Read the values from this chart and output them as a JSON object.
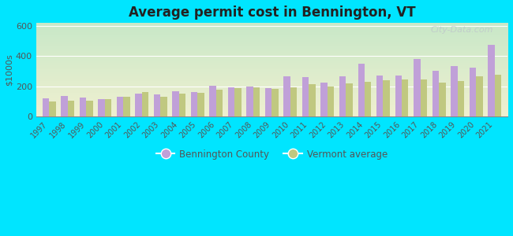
{
  "title": "Average permit cost in Bennington, VT",
  "ylabel": "$1000s",
  "background_outer": "#00e5ff",
  "bar_color_bennington": "#c0a0d8",
  "bar_color_vermont": "#c0c880",
  "years": [
    1997,
    1998,
    1999,
    2000,
    2001,
    2002,
    2003,
    2004,
    2005,
    2006,
    2007,
    2008,
    2009,
    2010,
    2011,
    2012,
    2013,
    2014,
    2015,
    2016,
    2017,
    2018,
    2019,
    2020,
    2021
  ],
  "bennington": [
    120,
    135,
    125,
    115,
    130,
    150,
    145,
    165,
    160,
    205,
    195,
    200,
    190,
    265,
    260,
    225,
    265,
    350,
    270,
    270,
    380,
    305,
    335,
    325,
    475
  ],
  "vermont": [
    100,
    105,
    105,
    115,
    130,
    160,
    130,
    150,
    155,
    175,
    190,
    195,
    185,
    195,
    215,
    200,
    220,
    230,
    240,
    245,
    245,
    225,
    235,
    265,
    275
  ],
  "ylim": [
    0,
    620
  ],
  "yticks": [
    0,
    200,
    400,
    600
  ],
  "legend_labels": [
    "Bennington County",
    "Vermont average"
  ],
  "watermark": "City-Data.com",
  "bg_topleft": "#c8e8c8",
  "bg_bottomright": "#f0f0d0"
}
